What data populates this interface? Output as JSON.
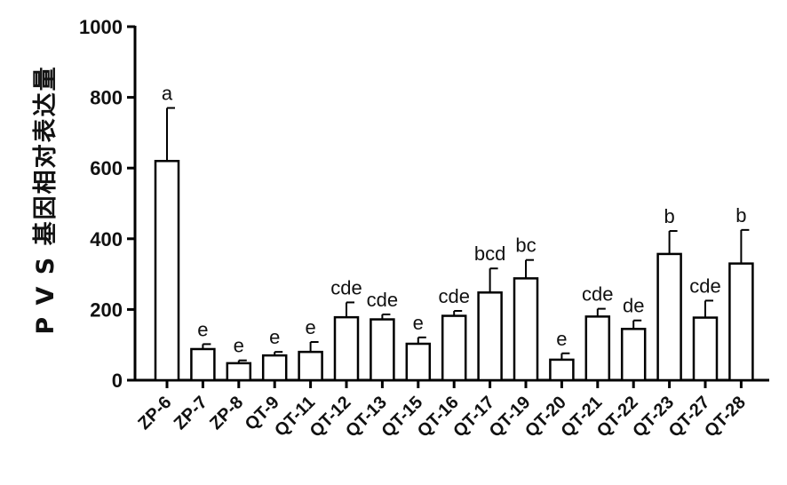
{
  "chart_data": {
    "type": "bar",
    "ylabel": "P V S 基因相对表达量",
    "ylim": [
      0,
      1000
    ],
    "yticks": [
      0,
      200,
      400,
      600,
      800,
      1000
    ],
    "categories": [
      "ZP-6",
      "ZP-7",
      "ZP-8",
      "QT-9",
      "QT-11",
      "QT-12",
      "QT-13",
      "QT-15",
      "QT-16",
      "QT-17",
      "QT-19",
      "QT-20",
      "QT-21",
      "QT-22",
      "QT-23",
      "QT-27",
      "QT-28"
    ],
    "values": [
      620,
      88,
      48,
      70,
      80,
      178,
      172,
      103,
      182,
      248,
      288,
      58,
      180,
      145,
      357,
      177,
      330
    ],
    "errors": [
      150,
      14,
      8,
      10,
      28,
      42,
      14,
      18,
      14,
      68,
      52,
      18,
      22,
      24,
      65,
      48,
      95
    ],
    "significance": [
      "a",
      "e",
      "e",
      "e",
      "e",
      "cde",
      "cde",
      "e",
      "cde",
      "bcd",
      "bc",
      "e",
      "cde",
      "de",
      "b",
      "cde",
      "b"
    ],
    "bar_fill": "#ffffff",
    "bar_stroke": "#000000",
    "grid": false,
    "legend": "none"
  }
}
